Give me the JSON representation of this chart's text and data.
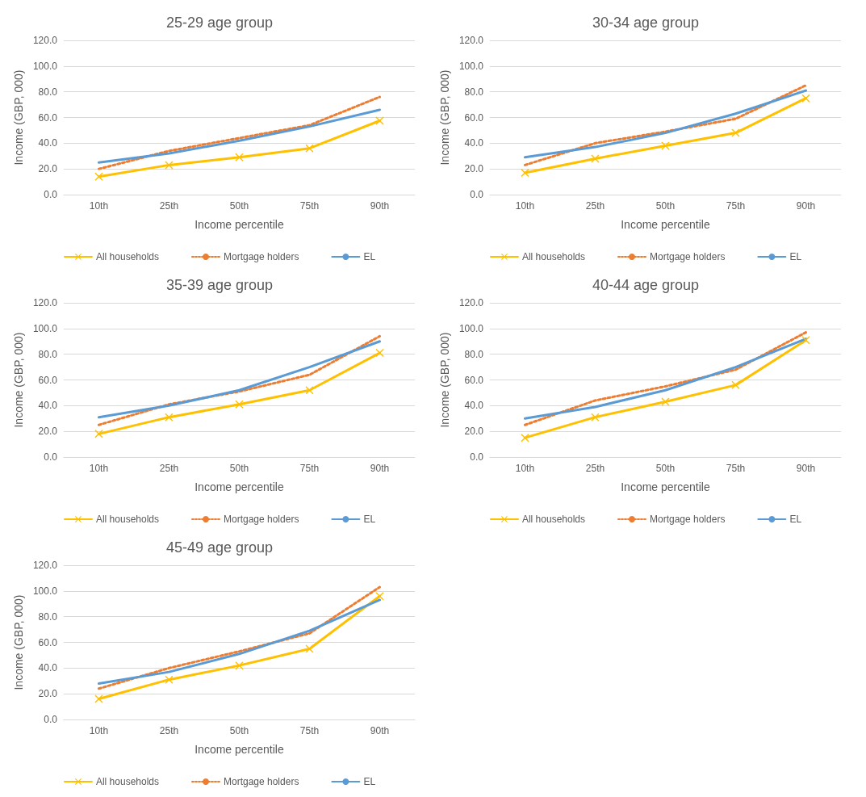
{
  "chart_data": [
    {
      "type": "line",
      "title": "25-29 age group",
      "xlabel": "Income percentile",
      "ylabel": "Income (GBP, 000)",
      "categories": [
        "10th",
        "25th",
        "50th",
        "75th",
        "90th"
      ],
      "ylim": [
        0,
        120
      ],
      "yticks": [
        {
          "value": 0,
          "label": "0.0"
        },
        {
          "value": 20,
          "label": "20.0"
        },
        {
          "value": 40,
          "label": "40.0"
        },
        {
          "value": 60,
          "label": "60.0"
        },
        {
          "value": 80,
          "label": "80.0"
        },
        {
          "value": 100,
          "label": "100.0"
        },
        {
          "value": 120,
          "label": "120.0"
        }
      ],
      "grid": "y",
      "legend": "bottom",
      "series": [
        {
          "name": "All households",
          "color": "#ffc000",
          "marker": "cross",
          "line_style": "solid",
          "values": [
            14,
            23,
            29,
            36,
            57.5
          ]
        },
        {
          "name": "Mortgage holders",
          "color": "#ed7d31",
          "marker": "none",
          "line_style": "dotted",
          "values": [
            20,
            34,
            44,
            54,
            76
          ]
        },
        {
          "name": "EL",
          "color": "#5b9bd5",
          "marker": "none",
          "line_style": "solid",
          "values": [
            25,
            32,
            42,
            53,
            66
          ]
        }
      ]
    },
    {
      "type": "line",
      "title": "30-34 age group",
      "xlabel": "Income percentile",
      "ylabel": "Income (GBP, 000)",
      "categories": [
        "10th",
        "25th",
        "50th",
        "75th",
        "90th"
      ],
      "ylim": [
        0,
        120
      ],
      "yticks": [
        {
          "value": 0,
          "label": "0.0"
        },
        {
          "value": 20,
          "label": "20.0"
        },
        {
          "value": 40,
          "label": "40.0"
        },
        {
          "value": 60,
          "label": "60.0"
        },
        {
          "value": 80,
          "label": "80.0"
        },
        {
          "value": 100,
          "label": "100.0"
        },
        {
          "value": 120,
          "label": "120.0"
        }
      ],
      "grid": "y",
      "legend": "bottom",
      "series": [
        {
          "name": "All households",
          "color": "#ffc000",
          "marker": "cross",
          "line_style": "solid",
          "values": [
            17,
            28,
            38,
            48,
            75
          ]
        },
        {
          "name": "Mortgage holders",
          "color": "#ed7d31",
          "marker": "none",
          "line_style": "dotted",
          "values": [
            23,
            40,
            49,
            59,
            85
          ]
        },
        {
          "name": "EL",
          "color": "#5b9bd5",
          "marker": "none",
          "line_style": "solid",
          "values": [
            29,
            37,
            48,
            63,
            81
          ]
        }
      ]
    },
    {
      "type": "line",
      "title": "35-39 age group",
      "xlabel": "Income percentile",
      "ylabel": "Income (GBP, 000)",
      "categories": [
        "10th",
        "25th",
        "50th",
        "75th",
        "90th"
      ],
      "ylim": [
        0,
        120
      ],
      "yticks": [
        {
          "value": 0,
          "label": "0.0"
        },
        {
          "value": 20,
          "label": "20.0"
        },
        {
          "value": 40,
          "label": "40.0"
        },
        {
          "value": 60,
          "label": "60.0"
        },
        {
          "value": 80,
          "label": "80.0"
        },
        {
          "value": 100,
          "label": "100.0"
        },
        {
          "value": 120,
          "label": "120.0"
        }
      ],
      "grid": "y",
      "legend": "bottom",
      "series": [
        {
          "name": "All households",
          "color": "#ffc000",
          "marker": "cross",
          "line_style": "solid",
          "values": [
            18,
            31,
            41,
            52,
            81
          ]
        },
        {
          "name": "Mortgage holders",
          "color": "#ed7d31",
          "marker": "none",
          "line_style": "dotted",
          "values": [
            25,
            41,
            51,
            64,
            94
          ]
        },
        {
          "name": "EL",
          "color": "#5b9bd5",
          "marker": "none",
          "line_style": "solid",
          "values": [
            31,
            40,
            52,
            70,
            90
          ]
        }
      ]
    },
    {
      "type": "line",
      "title": "40-44 age group",
      "xlabel": "Income percentile",
      "ylabel": "Income (GBP, 000)",
      "categories": [
        "10th",
        "25th",
        "50th",
        "75th",
        "90th"
      ],
      "ylim": [
        0,
        120
      ],
      "yticks": [
        {
          "value": 0,
          "label": "0.0"
        },
        {
          "value": 20,
          "label": "20.0"
        },
        {
          "value": 40,
          "label": "40.0"
        },
        {
          "value": 60,
          "label": "60.0"
        },
        {
          "value": 80,
          "label": "80.0"
        },
        {
          "value": 100,
          "label": "100.0"
        },
        {
          "value": 120,
          "label": "120.0"
        }
      ],
      "grid": "y",
      "legend": "bottom",
      "series": [
        {
          "name": "All households",
          "color": "#ffc000",
          "marker": "cross",
          "line_style": "solid",
          "values": [
            15,
            31,
            43,
            56,
            91
          ]
        },
        {
          "name": "Mortgage holders",
          "color": "#ed7d31",
          "marker": "none",
          "line_style": "dotted",
          "values": [
            25,
            44,
            55,
            68,
            97
          ]
        },
        {
          "name": "EL",
          "color": "#5b9bd5",
          "marker": "none",
          "line_style": "solid",
          "values": [
            30,
            39,
            52,
            70,
            92
          ]
        }
      ]
    },
    {
      "type": "line",
      "title": "45-49 age group",
      "xlabel": "Income percentile",
      "ylabel": "Income (GBP, 000)",
      "categories": [
        "10th",
        "25th",
        "50th",
        "75th",
        "90th"
      ],
      "ylim": [
        0,
        120
      ],
      "yticks": [
        {
          "value": 0,
          "label": "0.0"
        },
        {
          "value": 20,
          "label": "20.0"
        },
        {
          "value": 40,
          "label": "40.0"
        },
        {
          "value": 60,
          "label": "60.0"
        },
        {
          "value": 80,
          "label": "80.0"
        },
        {
          "value": 100,
          "label": "100.0"
        },
        {
          "value": 120,
          "label": "120.0"
        }
      ],
      "grid": "y",
      "legend": "bottom",
      "series": [
        {
          "name": "All households",
          "color": "#ffc000",
          "marker": "cross",
          "line_style": "solid",
          "values": [
            16,
            31,
            42,
            55,
            96
          ]
        },
        {
          "name": "Mortgage holders",
          "color": "#ed7d31",
          "marker": "none",
          "line_style": "dotted",
          "values": [
            24,
            40,
            53,
            67,
            103
          ]
        },
        {
          "name": "EL",
          "color": "#5b9bd5",
          "marker": "none",
          "line_style": "solid",
          "values": [
            28,
            37,
            51,
            69,
            93
          ]
        }
      ]
    }
  ]
}
